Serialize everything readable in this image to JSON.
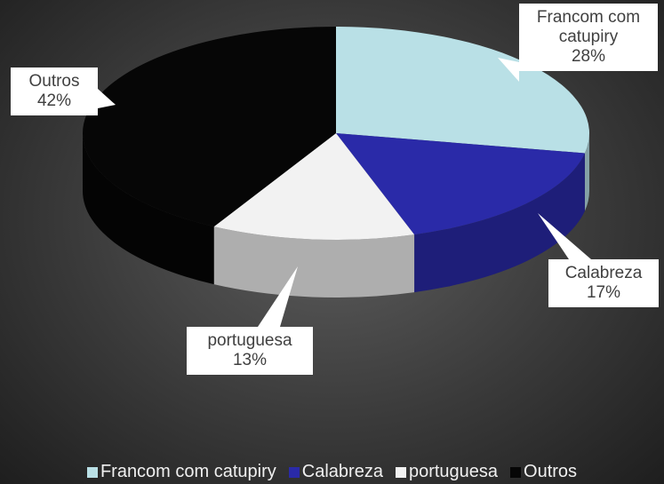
{
  "chart_data": {
    "type": "pie",
    "categories": [
      "Francom com catupiry",
      "Calabreza",
      "portuguesa",
      "Outros"
    ],
    "values": [
      28,
      17,
      13,
      42
    ],
    "value_labels": [
      "28%",
      "17%",
      "13%",
      "42%"
    ],
    "colors": [
      "#b9e0e6",
      "#2a2aa8",
      "#f2f2f2",
      "#060606"
    ],
    "legend": "bottom"
  }
}
